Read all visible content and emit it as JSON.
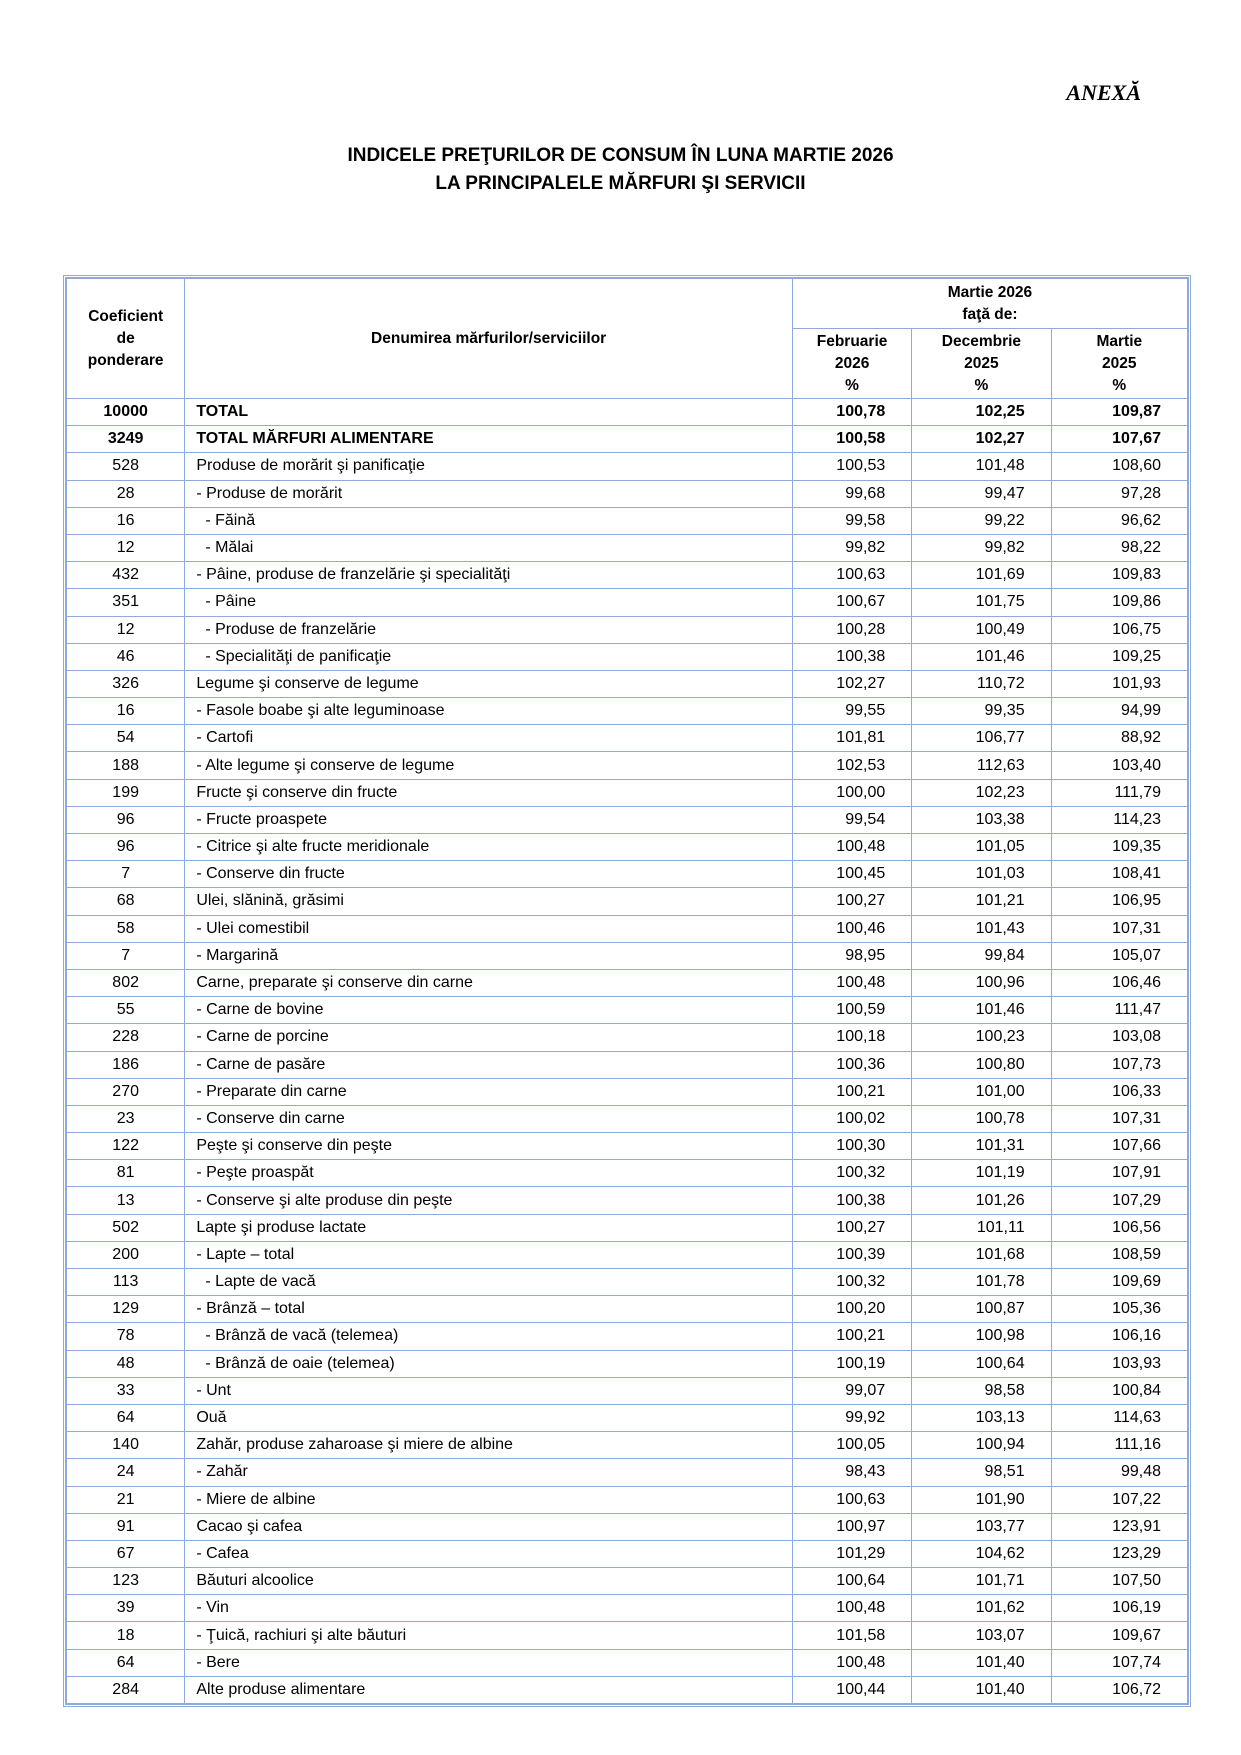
{
  "annex_label": "ANEXĂ",
  "title": {
    "line1": "INDICELE PREŢURILOR DE CONSUM ÎN LUNA  MARTIE  2026",
    "line2": "LA PRINCIPALELE MĂRFURI ŞI SERVICII"
  },
  "table": {
    "headers": {
      "weight": [
        "Coeficient",
        "de",
        "ponderare"
      ],
      "name": "Denumirea mărfurilor/serviciilor",
      "group": [
        "Martie  2026",
        "faţă de:"
      ],
      "cols": [
        [
          "Februarie",
          "2026",
          "%"
        ],
        [
          "Decembrie",
          "2025",
          "%"
        ],
        [
          "Martie",
          "2025",
          "%"
        ]
      ]
    },
    "rows": [
      {
        "w": "10000",
        "name": "TOTAL",
        "v": [
          "100,78",
          "102,25",
          "109,87"
        ],
        "bold": true,
        "level": 0
      },
      {
        "w": "3249",
        "name": "TOTAL MĂRFURI ALIMENTARE",
        "v": [
          "100,58",
          "102,27",
          "107,67"
        ],
        "bold": true,
        "level": 0
      },
      {
        "w": "528",
        "name": "Produse de morărit şi panificaţie",
        "v": [
          "100,53",
          "101,48",
          "108,60"
        ],
        "level": 0
      },
      {
        "w": "28",
        "name": "- Produse de morărit",
        "v": [
          "99,68",
          "99,47",
          "97,28"
        ],
        "level": 1
      },
      {
        "w": "16",
        "name": "- Făină",
        "v": [
          "99,58",
          "99,22",
          "96,62"
        ],
        "level": 2
      },
      {
        "w": "12",
        "name": "- Mălai",
        "v": [
          "99,82",
          "99,82",
          "98,22"
        ],
        "level": 2
      },
      {
        "w": "432",
        "name": "- Pâine, produse de franzelărie şi specialităţi",
        "v": [
          "100,63",
          "101,69",
          "109,83"
        ],
        "level": 1
      },
      {
        "w": "351",
        "name": "- Pâine",
        "v": [
          "100,67",
          "101,75",
          "109,86"
        ],
        "level": 2
      },
      {
        "w": "12",
        "name": "- Produse de franzelărie",
        "v": [
          "100,28",
          "100,49",
          "106,75"
        ],
        "level": 2
      },
      {
        "w": "46",
        "name": "- Specialităţi de panificaţie",
        "v": [
          "100,38",
          "101,46",
          "109,25"
        ],
        "level": 2
      },
      {
        "w": "326",
        "name": "Legume şi conserve de legume",
        "v": [
          "102,27",
          "110,72",
          "101,93"
        ],
        "level": 0
      },
      {
        "w": "16",
        "name": "- Fasole boabe şi alte leguminoase",
        "v": [
          "99,55",
          "99,35",
          "94,99"
        ],
        "level": 1
      },
      {
        "w": "54",
        "name": "- Cartofi",
        "v": [
          "101,81",
          "106,77",
          "88,92"
        ],
        "level": 1
      },
      {
        "w": "188",
        "name": "- Alte legume şi conserve de legume",
        "v": [
          "102,53",
          "112,63",
          "103,40"
        ],
        "level": 1
      },
      {
        "w": "199",
        "name": "Fructe şi conserve din fructe",
        "v": [
          "100,00",
          "102,23",
          "111,79"
        ],
        "level": 0
      },
      {
        "w": "96",
        "name": "- Fructe proaspete",
        "v": [
          "99,54",
          "103,38",
          "114,23"
        ],
        "level": 1
      },
      {
        "w": "96",
        "name": "- Citrice şi alte fructe meridionale",
        "v": [
          "100,48",
          "101,05",
          "109,35"
        ],
        "level": 1
      },
      {
        "w": "7",
        "name": "- Conserve din fructe",
        "v": [
          "100,45",
          "101,03",
          "108,41"
        ],
        "level": 1
      },
      {
        "w": "68",
        "name": "Ulei, slănină, grăsimi",
        "v": [
          "100,27",
          "101,21",
          "106,95"
        ],
        "level": 0
      },
      {
        "w": "58",
        "name": "- Ulei comestibil",
        "v": [
          "100,46",
          "101,43",
          "107,31"
        ],
        "level": 1
      },
      {
        "w": "7",
        "name": "- Margarină",
        "v": [
          "98,95",
          "99,84",
          "105,07"
        ],
        "level": 1
      },
      {
        "w": "802",
        "name": "Carne, preparate şi conserve din carne",
        "v": [
          "100,48",
          "100,96",
          "106,46"
        ],
        "level": 0
      },
      {
        "w": "55",
        "name": "- Carne de bovine",
        "v": [
          "100,59",
          "101,46",
          "111,47"
        ],
        "level": 1
      },
      {
        "w": "228",
        "name": "- Carne de porcine",
        "v": [
          "100,18",
          "100,23",
          "103,08"
        ],
        "level": 1
      },
      {
        "w": "186",
        "name": "- Carne de pasăre",
        "v": [
          "100,36",
          "100,80",
          "107,73"
        ],
        "level": 1
      },
      {
        "w": "270",
        "name": "- Preparate din carne",
        "v": [
          "100,21",
          "101,00",
          "106,33"
        ],
        "level": 1
      },
      {
        "w": "23",
        "name": "- Conserve din carne",
        "v": [
          "100,02",
          "100,78",
          "107,31"
        ],
        "level": 1
      },
      {
        "w": "122",
        "name": "Peşte şi conserve din peşte",
        "v": [
          "100,30",
          "101,31",
          "107,66"
        ],
        "level": 0
      },
      {
        "w": "81",
        "name": "- Peşte proaspăt",
        "v": [
          "100,32",
          "101,19",
          "107,91"
        ],
        "level": 1
      },
      {
        "w": "13",
        "name": "- Conserve şi alte produse din peşte",
        "v": [
          "100,38",
          "101,26",
          "107,29"
        ],
        "level": 1
      },
      {
        "w": "502",
        "name": "Lapte şi produse lactate",
        "v": [
          "100,27",
          "101,11",
          "106,56"
        ],
        "level": 0
      },
      {
        "w": "200",
        "name": "- Lapte – total",
        "v": [
          "100,39",
          "101,68",
          "108,59"
        ],
        "level": 1
      },
      {
        "w": "113",
        "name": "- Lapte de vacă",
        "v": [
          "100,32",
          "101,78",
          "109,69"
        ],
        "level": 2
      },
      {
        "w": "129",
        "name": "- Brânză – total",
        "v": [
          "100,20",
          "100,87",
          "105,36"
        ],
        "level": 1
      },
      {
        "w": "78",
        "name": "- Brânză de vacă (telemea)",
        "v": [
          "100,21",
          "100,98",
          "106,16"
        ],
        "level": 2
      },
      {
        "w": "48",
        "name": "- Brânză de oaie (telemea)",
        "v": [
          "100,19",
          "100,64",
          "103,93"
        ],
        "level": 2
      },
      {
        "w": "33",
        "name": "- Unt",
        "v": [
          "99,07",
          "98,58",
          "100,84"
        ],
        "level": 1
      },
      {
        "w": "64",
        "name": "Ouă",
        "v": [
          "99,92",
          "103,13",
          "114,63"
        ],
        "level": 0
      },
      {
        "w": "140",
        "name": "Zahăr, produse zaharoase şi miere de albine",
        "v": [
          "100,05",
          "100,94",
          "111,16"
        ],
        "level": 0
      },
      {
        "w": "24",
        "name": "- Zahăr",
        "v": [
          "98,43",
          "98,51",
          "99,48"
        ],
        "level": 1
      },
      {
        "w": "21",
        "name": "- Miere de albine",
        "v": [
          "100,63",
          "101,90",
          "107,22"
        ],
        "level": 1
      },
      {
        "w": "91",
        "name": "Cacao şi cafea",
        "v": [
          "100,97",
          "103,77",
          "123,91"
        ],
        "level": 0
      },
      {
        "w": "67",
        "name": "- Cafea",
        "v": [
          "101,29",
          "104,62",
          "123,29"
        ],
        "level": 1
      },
      {
        "w": "123",
        "name": "Băuturi alcoolice",
        "v": [
          "100,64",
          "101,71",
          "107,50"
        ],
        "level": 0
      },
      {
        "w": "39",
        "name": "- Vin",
        "v": [
          "100,48",
          "101,62",
          "106,19"
        ],
        "level": 1
      },
      {
        "w": "18",
        "name": "- Ţuică, rachiuri şi alte băuturi",
        "v": [
          "101,58",
          "103,07",
          "109,67"
        ],
        "level": 1
      },
      {
        "w": "64",
        "name": "- Bere",
        "v": [
          "100,48",
          "101,40",
          "107,74"
        ],
        "level": 1
      },
      {
        "w": "284",
        "name": "Alte produse alimentare",
        "v": [
          "100,44",
          "101,40",
          "106,72"
        ],
        "level": 0
      }
    ]
  }
}
